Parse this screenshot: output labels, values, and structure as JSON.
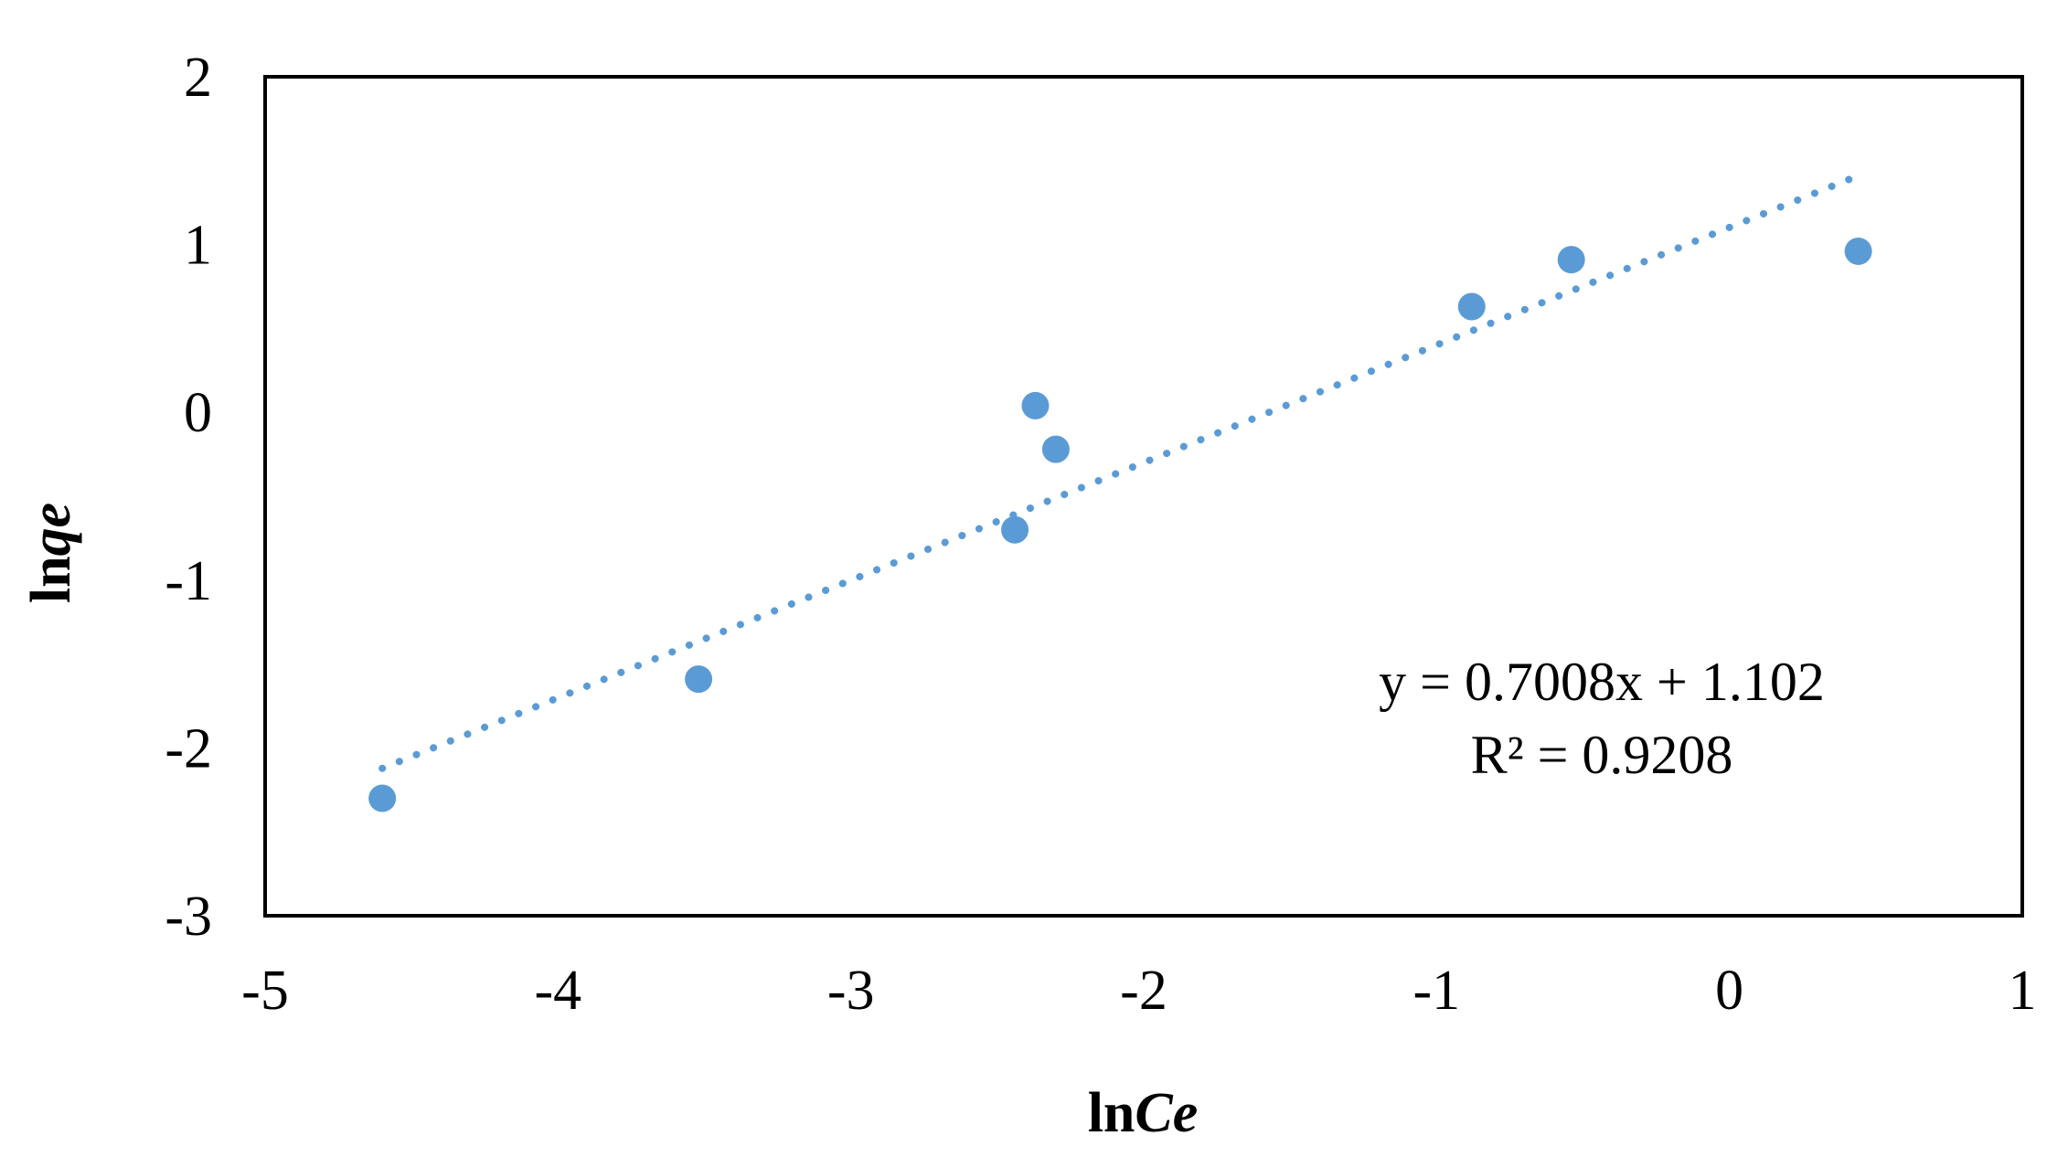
{
  "chart_data": {
    "type": "scatter",
    "title": "",
    "xlabel": {
      "prefix": "ln",
      "italic": "Ce"
    },
    "ylabel": {
      "prefix": "ln",
      "italic": "qe"
    },
    "xlim": [
      -5,
      1
    ],
    "ylim": [
      -3,
      2
    ],
    "x_ticks": [
      -5,
      -4,
      -3,
      -2,
      -1,
      0,
      1
    ],
    "y_ticks": [
      -3,
      -2,
      -1,
      0,
      1,
      2
    ],
    "x_tick_labels": [
      "-5",
      "-4",
      "-3",
      "-2",
      "-1",
      "0",
      "1"
    ],
    "y_tick_labels": [
      "-3",
      "-2",
      "-1",
      "0",
      "1",
      "2"
    ],
    "grid": false,
    "legend": "none",
    "series": [
      {
        "x": [
          -4.6,
          -3.52,
          -2.44,
          -2.37,
          -2.3,
          -0.88,
          -0.54,
          0.44
        ],
        "y": [
          -2.3,
          -1.59,
          -0.7,
          0.04,
          -0.22,
          0.63,
          0.91,
          0.96
        ],
        "color": "#5b9bd5"
      }
    ],
    "trendline": {
      "type": "linear",
      "slope": 0.7008,
      "intercept": 1.102,
      "x_range": [
        -4.6,
        0.44
      ],
      "style": "dotted",
      "color": "#5b9bd5"
    },
    "annotations": {
      "equation": "y = 0.7008x + 1.102",
      "r_squared": "R² = 0.9208"
    }
  }
}
